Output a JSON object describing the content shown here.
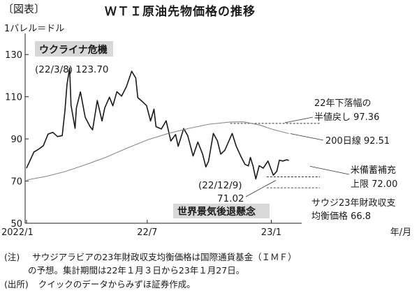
{
  "header": {
    "figure_label": "〔図表〕",
    "title": "ＷＴＩ原油先物価格の推移",
    "unit": "1バレル＝ドル"
  },
  "chart_data": {
    "type": "line",
    "title": "ＷＴＩ原油先物価格の推移",
    "ylim": [
      50,
      140
    ],
    "yticks": [
      50,
      70,
      90,
      110,
      130
    ],
    "x_ticks": [
      "2022/1",
      "22/7",
      "23/1"
    ],
    "x_unit": "年/月",
    "series": [
      {
        "name": "",
        "style": "price",
        "values": [
          [
            "2022-01-03",
            76.1
          ],
          [
            "2022-01-07",
            78.9
          ],
          [
            "2022-01-14",
            83.8
          ],
          [
            "2022-01-21",
            85.1
          ],
          [
            "2022-01-28",
            86.8
          ],
          [
            "2022-02-04",
            92.3
          ],
          [
            "2022-02-11",
            93.1
          ],
          [
            "2022-02-18",
            91.1
          ],
          [
            "2022-02-25",
            91.6
          ],
          [
            "2022-03-01",
            103.4
          ],
          [
            "2022-03-04",
            115.7
          ],
          [
            "2022-03-08",
            123.7
          ],
          [
            "2022-03-10",
            106.0
          ],
          [
            "2022-03-16",
            95.0
          ],
          [
            "2022-03-18",
            104.7
          ],
          [
            "2022-03-24",
            112.3
          ],
          [
            "2022-03-31",
            100.3
          ],
          [
            "2022-04-07",
            96.0
          ],
          [
            "2022-04-11",
            94.3
          ],
          [
            "2022-04-18",
            108.2
          ],
          [
            "2022-04-25",
            98.5
          ],
          [
            "2022-04-29",
            104.7
          ],
          [
            "2022-05-06",
            109.8
          ],
          [
            "2022-05-11",
            105.7
          ],
          [
            "2022-05-17",
            112.4
          ],
          [
            "2022-05-24",
            110.3
          ],
          [
            "2022-05-31",
            114.7
          ],
          [
            "2022-06-08",
            122.1
          ],
          [
            "2022-06-14",
            118.9
          ],
          [
            "2022-06-17",
            109.6
          ],
          [
            "2022-06-24",
            107.6
          ],
          [
            "2022-06-30",
            105.8
          ],
          [
            "2022-07-06",
            98.5
          ],
          [
            "2022-07-11",
            104.1
          ],
          [
            "2022-07-14",
            95.8
          ],
          [
            "2022-07-22",
            94.7
          ],
          [
            "2022-07-29",
            98.6
          ],
          [
            "2022-08-05",
            89.0
          ],
          [
            "2022-08-12",
            92.1
          ],
          [
            "2022-08-16",
            86.5
          ],
          [
            "2022-08-24",
            94.9
          ],
          [
            "2022-08-30",
            91.6
          ],
          [
            "2022-09-07",
            81.9
          ],
          [
            "2022-09-14",
            88.5
          ],
          [
            "2022-09-21",
            82.9
          ],
          [
            "2022-09-26",
            76.7
          ],
          [
            "2022-09-30",
            79.5
          ],
          [
            "2022-10-07",
            92.6
          ],
          [
            "2022-10-13",
            89.1
          ],
          [
            "2022-10-18",
            82.8
          ],
          [
            "2022-10-24",
            84.6
          ],
          [
            "2022-11-04",
            92.6
          ],
          [
            "2022-11-10",
            86.5
          ],
          [
            "2022-11-17",
            81.6
          ],
          [
            "2022-11-23",
            77.9
          ],
          [
            "2022-11-28",
            77.2
          ],
          [
            "2022-12-01",
            81.2
          ],
          [
            "2022-12-05",
            76.9
          ],
          [
            "2022-12-09",
            71.02
          ],
          [
            "2022-12-14",
            77.3
          ],
          [
            "2022-12-20",
            76.1
          ],
          [
            "2022-12-27",
            79.5
          ],
          [
            "2023-01-04",
            72.8
          ],
          [
            "2023-01-09",
            74.6
          ],
          [
            "2023-01-13",
            79.9
          ],
          [
            "2023-01-18",
            79.5
          ],
          [
            "2023-01-24",
            80.1
          ],
          [
            "2023-01-27",
            79.7
          ]
        ]
      },
      {
        "name": "200日線",
        "style": "ma200",
        "values": [
          [
            "2022-01-03",
            70.5
          ],
          [
            "2022-02-01",
            72.2
          ],
          [
            "2022-03-01",
            74.5
          ],
          [
            "2022-04-01",
            77.8
          ],
          [
            "2022-05-01",
            81.3
          ],
          [
            "2022-06-01",
            85.6
          ],
          [
            "2022-07-01",
            89.5
          ],
          [
            "2022-08-01",
            92.6
          ],
          [
            "2022-09-01",
            95.0
          ],
          [
            "2022-10-01",
            97.0
          ],
          [
            "2022-11-01",
            98.0
          ],
          [
            "2022-11-20",
            98.1
          ],
          [
            "2022-12-15",
            96.6
          ],
          [
            "2023-01-01",
            94.7
          ],
          [
            "2023-01-27",
            92.51
          ]
        ]
      }
    ],
    "reference_lines": [
      {
        "name": "22年下落幅の半値戻し",
        "value": 97.36,
        "x_from": "2022-11-01"
      },
      {
        "name": "米備蓄補充上限",
        "value": 72.0,
        "x_from": "2022-12-25"
      },
      {
        "name": "サウジ23年財政収支均衡価格",
        "value": 66.8,
        "x_from": "2022-12-25"
      }
    ],
    "annotations": {
      "event_box_top": "ウクライナ危機",
      "peak_label": "(22/3/8) 123.70",
      "half_retrace_line1": "22年下落幅の",
      "half_retrace_line2": "半値戻し 97.36",
      "ma_label": "200日線 92.51",
      "low_date": "(22/12/9)",
      "low_value": "71.02",
      "reserve_line1": "米備蓄補充",
      "reserve_line2": "上限 72.00",
      "event_box_bottom": "世界景気後退懸念",
      "saudi_line1": "サウジ23年財政収支",
      "saudi_line2": "均衡価格 66.8"
    }
  },
  "footer": {
    "note_label": "(注)",
    "note_line1": "サウジアラビアの23年財政収支均衡価格は国際通貨基金（ＩＭＦ）",
    "note_line2": "の予想。集計期間は22年１月３日から23年１月27日。",
    "source_label": "(出所)",
    "source_text": "クイックのデータからみずほ証券作成。"
  }
}
